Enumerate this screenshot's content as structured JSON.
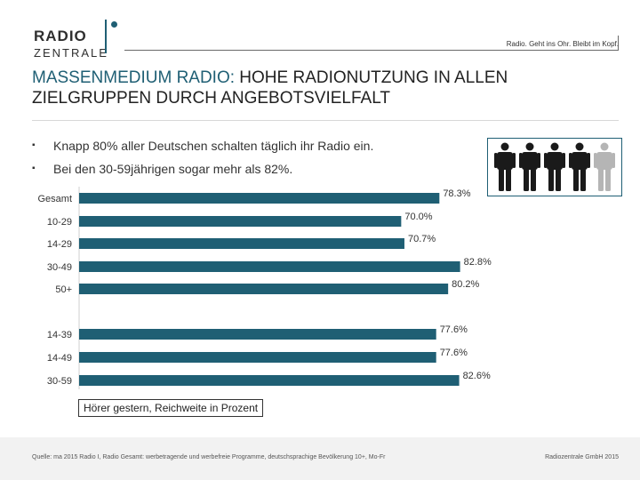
{
  "logo": {
    "top": "RADIO",
    "bottom": "ZENTRALE"
  },
  "tagline": "Radio. Geht ins Ohr. Bleibt im Kopf.",
  "title": {
    "accent": "MASSENMEDIUM RADIO:",
    "rest": " HOHE RADIONUTZUNG IN ALLEN ZIELGRUPPEN DURCH ANGEBOTSVIELFALT"
  },
  "bullets": [
    "Knapp 80% aller Deutschen schalten täglich ihr Radio ein.",
    "Bei den 30-59jährigen sogar mehr als 82%."
  ],
  "people": {
    "total": 5,
    "highlighted": 4,
    "dark_color": "#1a1a1a",
    "light_color": "#b5b5b5"
  },
  "colors": {
    "accent": "#1f5f74",
    "bar": "#1f5f74"
  },
  "chart_data": {
    "type": "bar",
    "orientation": "horizontal",
    "categories": [
      "Gesamt",
      "10-29",
      "14-29",
      "30-49",
      "50+",
      "14-39",
      "14-49",
      "30-59"
    ],
    "values": [
      78.3,
      70.0,
      70.7,
      82.8,
      80.2,
      77.6,
      77.6,
      82.6
    ],
    "value_labels": [
      "78.3%",
      "70.0%",
      "70.7%",
      "82.8%",
      "80.2%",
      "77.6%",
      "77.6%",
      "82.6%"
    ],
    "xlim": [
      0,
      85
    ],
    "legend": "Hörer gestern, Reichweite in Prozent",
    "title": "",
    "xlabel": "",
    "ylabel": ""
  },
  "footer": {
    "source": "Quelle: ma 2015 Radio I, Radio Gesamt: werbetragende und werbefreie Programme, deutschsprachige Bevölkerung 10+, Mo-Fr",
    "company": "Radiozentrale GmbH 2015"
  }
}
